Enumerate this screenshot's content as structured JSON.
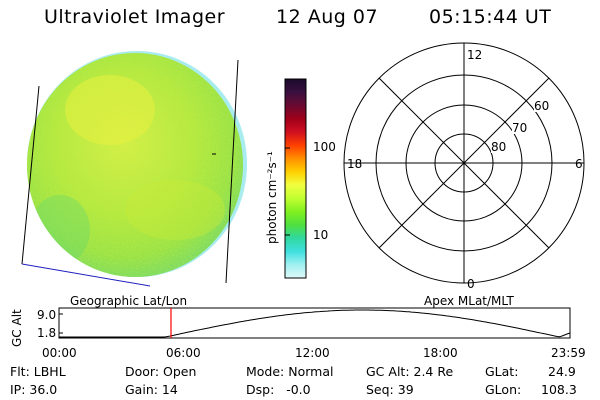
{
  "header": {
    "instrument": "Ultraviolet Imager",
    "date": "12 Aug 07",
    "time": "05:15:44 UT"
  },
  "colorbar": {
    "label": "photon cm⁻²s⁻¹",
    "ticks": [
      "100",
      "10"
    ],
    "colors": [
      "#1a0a2a",
      "#3a1040",
      "#6a0a30",
      "#a0001a",
      "#d01020",
      "#ff4000",
      "#ff9000",
      "#ffd000",
      "#f0ff40",
      "#c0ff30",
      "#80f020",
      "#50e040",
      "#30d8a0",
      "#40e0e0",
      "#a0f0f0",
      "#e0f8f8"
    ]
  },
  "polar_plot": {
    "mlt_labels": {
      "top": "12",
      "bottom": "0",
      "left": "18",
      "right": "6"
    },
    "lat_labels": [
      "60",
      "70",
      "80"
    ]
  },
  "panel_labels": {
    "left": "Geographic Lat/Lon",
    "right": "Apex MLat/MLT"
  },
  "altitude_strip": {
    "axis_label": "GC Alt",
    "y_ticks": [
      "9.0",
      "1.8"
    ],
    "x_ticks": [
      "00:00",
      "06:00",
      "12:00",
      "18:00",
      "23:59"
    ],
    "current_time_hours": 5.26,
    "marker_color": "#ff0000"
  },
  "info": {
    "row1": {
      "flt": "Flt: LBHL",
      "door": "Door: Open",
      "mode": "Mode: Normal",
      "gcalt": "GC Alt: 2.4 Re",
      "glat_label": "GLat:",
      "glat_value": "24.9"
    },
    "row2": {
      "ip": "IP: 36.0",
      "gain": "Gain: 14",
      "dsp": "Dsp:   -0.0",
      "seq": "Seq: 39",
      "glon_label": "GLon:",
      "glon_value": "108.3"
    }
  }
}
